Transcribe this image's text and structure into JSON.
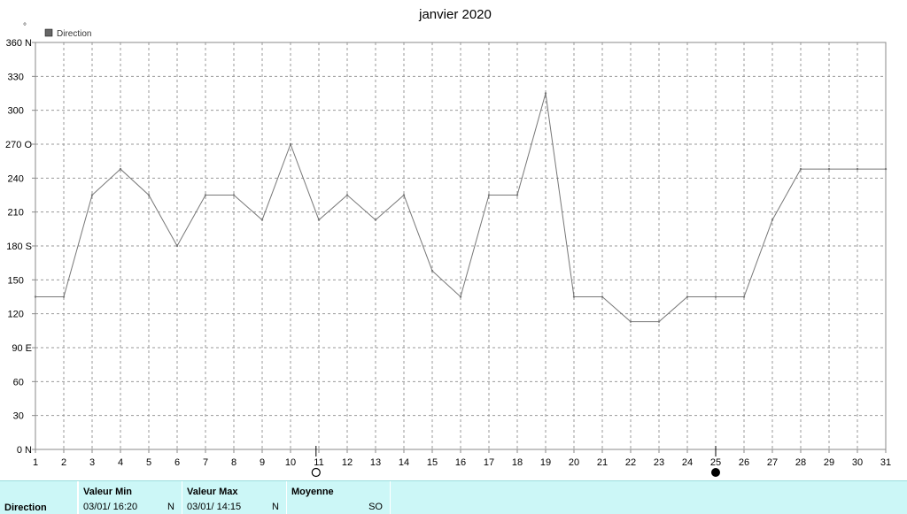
{
  "chart_data": {
    "type": "line",
    "title": "janvier 2020",
    "y_unit": "°",
    "legend": [
      "Direction"
    ],
    "legend_placement": "top-left",
    "grid": true,
    "ylim": [
      0,
      360
    ],
    "xlim": [
      1,
      31
    ],
    "x_ticks": [
      1,
      2,
      3,
      4,
      5,
      6,
      7,
      8,
      9,
      10,
      11,
      12,
      13,
      14,
      15,
      16,
      17,
      18,
      19,
      20,
      21,
      22,
      23,
      24,
      25,
      26,
      27,
      28,
      29,
      30,
      31
    ],
    "y_ticks": [
      {
        "value": 0,
        "label": "0",
        "dir": "N"
      },
      {
        "value": 30,
        "label": "30",
        "dir": ""
      },
      {
        "value": 60,
        "label": "60",
        "dir": ""
      },
      {
        "value": 90,
        "label": "90",
        "dir": "E"
      },
      {
        "value": 120,
        "label": "120",
        "dir": ""
      },
      {
        "value": 150,
        "label": "150",
        "dir": ""
      },
      {
        "value": 180,
        "label": "180",
        "dir": "S"
      },
      {
        "value": 210,
        "label": "210",
        "dir": ""
      },
      {
        "value": 240,
        "label": "240",
        "dir": ""
      },
      {
        "value": 270,
        "label": "270",
        "dir": "O"
      },
      {
        "value": 300,
        "label": "300",
        "dir": ""
      },
      {
        "value": 330,
        "label": "330",
        "dir": ""
      },
      {
        "value": 360,
        "label": "360",
        "dir": "N"
      }
    ],
    "series": [
      {
        "name": "Direction",
        "color": "#777777",
        "points": [
          [
            1,
            135
          ],
          [
            2,
            135
          ],
          [
            3,
            225
          ],
          [
            4,
            248
          ],
          [
            5,
            225
          ],
          [
            6,
            180
          ],
          [
            7,
            225
          ],
          [
            8,
            225
          ],
          [
            9,
            203
          ],
          [
            10,
            270
          ],
          [
            11,
            203
          ],
          [
            12,
            225
          ],
          [
            13,
            203
          ],
          [
            14,
            225
          ],
          [
            15,
            158
          ],
          [
            16,
            135
          ],
          [
            17,
            225
          ],
          [
            18,
            225
          ],
          [
            19,
            315
          ],
          [
            20,
            135
          ],
          [
            21,
            135
          ],
          [
            22,
            113
          ],
          [
            23,
            113
          ],
          [
            24,
            135
          ],
          [
            25,
            135
          ],
          [
            26,
            135
          ],
          [
            27,
            203
          ],
          [
            28,
            248
          ],
          [
            29,
            248
          ],
          [
            30,
            248
          ],
          [
            31,
            248
          ]
        ]
      }
    ],
    "moon_markers": [
      {
        "x": 10.9,
        "phase": "full-moon"
      },
      {
        "x": 25,
        "phase": "new-moon"
      }
    ]
  },
  "footer": {
    "row_label": "Direction",
    "min": {
      "header": "Valeur Min",
      "datetime": "03/01/  16:20",
      "dir": "N"
    },
    "max": {
      "header": "Valeur Max",
      "datetime": "03/01/  14:15",
      "dir": "N"
    },
    "avg": {
      "header": "Moyenne",
      "dir": "SO"
    }
  }
}
